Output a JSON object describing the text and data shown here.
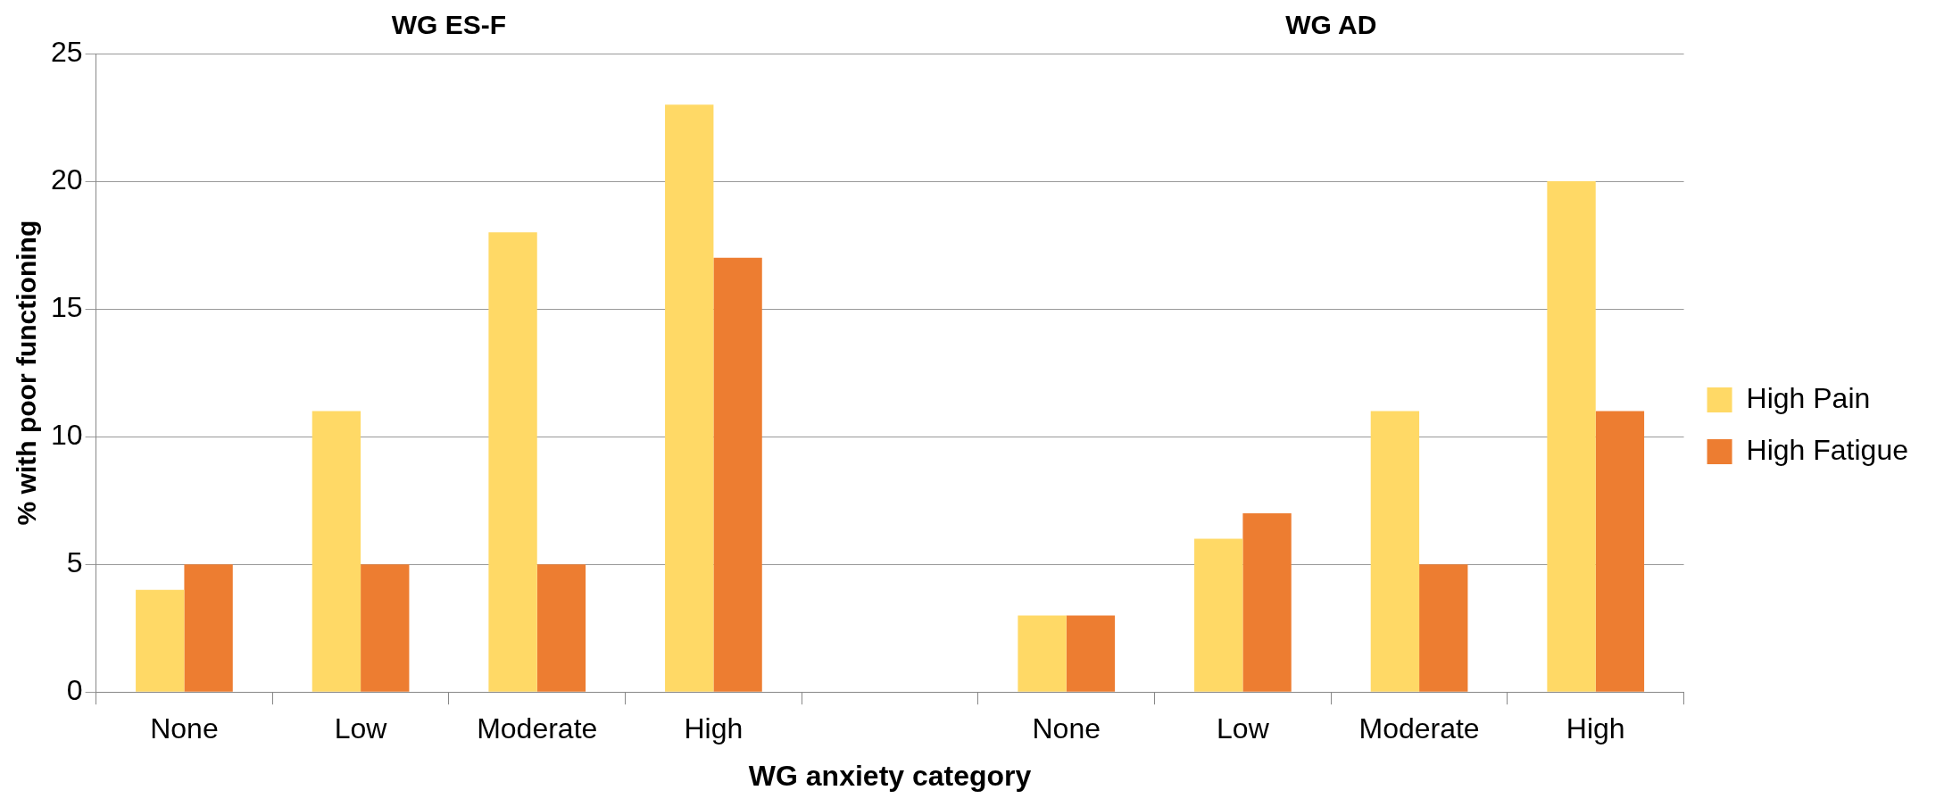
{
  "chart_data": {
    "type": "bar",
    "xlabel": "WG anxiety category",
    "ylabel": "% with poor functioning",
    "categories": [
      "None",
      "Low",
      "Moderate",
      "High",
      null,
      "None",
      "Low",
      "Moderate",
      "High"
    ],
    "series": [
      {
        "name": "High Pain",
        "color": "#ffd966",
        "values": [
          4,
          11,
          18,
          23,
          null,
          3,
          6,
          11,
          20
        ]
      },
      {
        "name": "High Fatigue",
        "color": "#ed7d31",
        "values": [
          5,
          5,
          5,
          17,
          null,
          3,
          7,
          5,
          11
        ]
      }
    ],
    "ylim": [
      0,
      25
    ],
    "yticks": [
      0,
      5,
      10,
      15,
      20,
      25
    ],
    "grid": "y",
    "legend": "right",
    "annotations": [
      "WG ES-F",
      "WG AD"
    ]
  }
}
